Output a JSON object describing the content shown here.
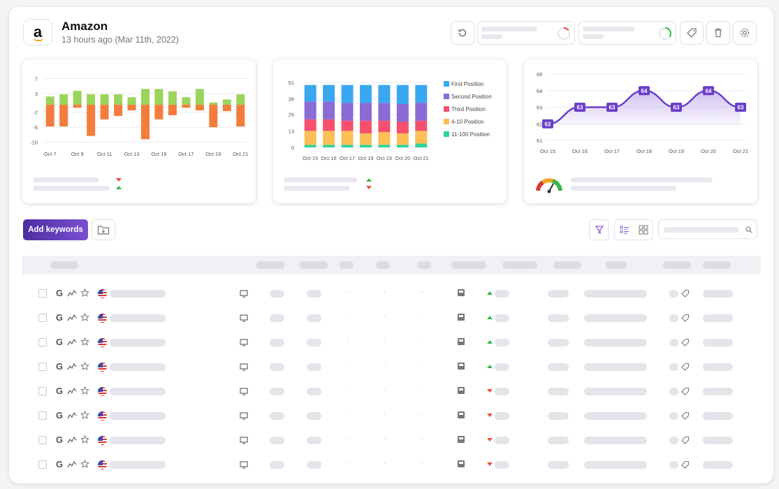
{
  "header": {
    "title": "Amazon",
    "subtitle": "13 hours ago (Mar 11th, 2022)",
    "logo_letter": "a"
  },
  "toolbar": {
    "add_keywords_label": "Add keywords",
    "icons": [
      "refresh-icon",
      "tag-icon",
      "trash-icon",
      "gear-icon",
      "filter-icon",
      "list-view-icon",
      "grid-view-icon",
      "search-icon",
      "folder-download-icon"
    ],
    "progress_rings": [
      0.15,
      0.35
    ]
  },
  "colors": {
    "accent": "#6a3fc9",
    "positive": "#9bd45b",
    "negative": "#f47c3c",
    "up": "#3bb54a",
    "down": "#e8522f"
  },
  "chart_data": [
    {
      "type": "bar",
      "title": "",
      "categories": [
        "Oct 7",
        "Oct 8",
        "Oct 9",
        "Oct 10",
        "Oct 11",
        "Oct 12",
        "Oct 13",
        "Oct 14",
        "Oct 15",
        "Oct 16",
        "Oct 17",
        "Oct 18",
        "Oct 19",
        "Oct 20",
        "Oct 21"
      ],
      "x_tick_labels": [
        "Oct 7",
        "Oct 9",
        "Oct 11",
        "Oct 13",
        "Oct 15",
        "Oct 17",
        "Oct 19",
        "Oct 21"
      ],
      "series": [
        {
          "values": [
            2.2,
            2.8,
            3.7,
            2.8,
            2.8,
            2.8,
            2.0,
            4.2,
            4.2,
            3.6,
            2.0,
            4.2,
            0.6,
            1.4,
            2.8
          ]
        },
        {
          "values": [
            -5.8,
            -5.8,
            -0.8,
            -8.3,
            -3.9,
            -3.0,
            -1.5,
            -9.2,
            -3.9,
            -2.8,
            -0.8,
            -1.5,
            -6.0,
            -1.7,
            -5.8
          ]
        }
      ],
      "y_ticks": [
        7,
        3,
        -2,
        -6,
        -10
      ],
      "ylim": [
        -11,
        8
      ],
      "grid": true
    },
    {
      "type": "bar",
      "stacked": true,
      "categories": [
        "Oct 15",
        "Oct 16",
        "Oct 17",
        "Oct 18",
        "Oct 19",
        "Oct 20",
        "Oct 21"
      ],
      "y_ticks": [
        51,
        38,
        26,
        13,
        0
      ],
      "ylim": [
        0,
        51
      ],
      "series": [
        {
          "name": "11-100 Position",
          "values": [
            2,
            2,
            2,
            2,
            2,
            2,
            3
          ]
        },
        {
          "name": "4-10 Position",
          "values": [
            11,
            11,
            11,
            9,
            10,
            9,
            10
          ]
        },
        {
          "name": "Third Position",
          "values": [
            9,
            9,
            8,
            10,
            9,
            9,
            8
          ]
        },
        {
          "name": "Second Position",
          "values": [
            14,
            14,
            14,
            14,
            14,
            14,
            14
          ]
        },
        {
          "name": "First Position",
          "values": [
            13,
            13,
            14,
            14,
            14,
            15,
            14
          ]
        }
      ],
      "colors": [
        "#2fd49a",
        "#fbbf55",
        "#f5506e",
        "#8b6bd4",
        "#3aa8f0"
      ],
      "legend": "right"
    },
    {
      "type": "area",
      "categories": [
        "Oct 15",
        "Oct 16",
        "Oct 17",
        "Oct 18",
        "Oct 19",
        "Oct 20",
        "Oct 21"
      ],
      "values": [
        62,
        63,
        63,
        64,
        63,
        64,
        63
      ],
      "y_ticks": [
        65,
        64,
        63,
        62,
        61
      ],
      "ylim": [
        61,
        65
      ],
      "data_labels": true,
      "grid": true
    }
  ],
  "table": {
    "rows": [
      {
        "trend": "up"
      },
      {
        "trend": "up"
      },
      {
        "trend": "up"
      },
      {
        "trend": "up"
      },
      {
        "trend": "down"
      },
      {
        "trend": "down"
      },
      {
        "trend": "down"
      },
      {
        "trend": "down"
      }
    ]
  },
  "summaries": {
    "panel1_arrows": [
      "down",
      "up"
    ],
    "panel2_arrows": [
      "up",
      "down"
    ]
  }
}
